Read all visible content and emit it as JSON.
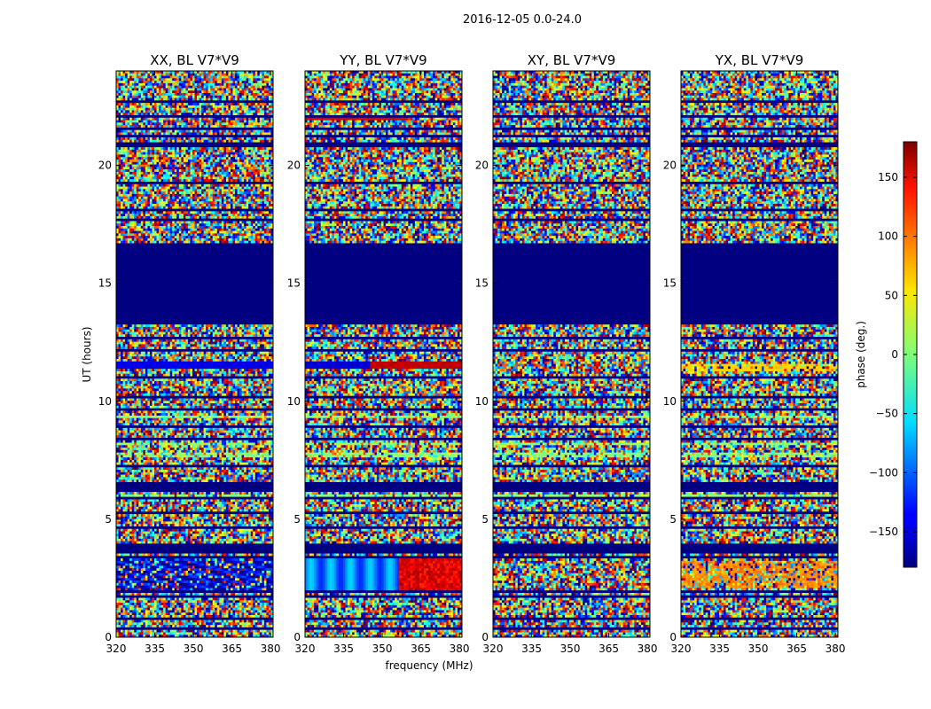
{
  "figure": {
    "suptitle": "2016-12-05 0.0-24.0",
    "xlabel": "frequency (MHz)",
    "ylabel": "UT (hours)"
  },
  "colorbar": {
    "label": "phase (deg.)",
    "range": [
      -180,
      180
    ],
    "ticks": [
      150,
      100,
      50,
      0,
      -50,
      -100,
      -150
    ],
    "tick_labels": [
      "150",
      "100",
      "50",
      "0",
      "−50",
      "−100",
      "−150"
    ],
    "colormap": "jet"
  },
  "chart_data": [
    {
      "type": "heatmap",
      "title": "XX, BL V7*V9",
      "xlim": [
        320,
        381
      ],
      "ylim": [
        0,
        24
      ],
      "xticks": [
        320,
        335,
        350,
        365,
        380
      ],
      "xtick_labels": [
        "320",
        "335",
        "350",
        "365",
        "380"
      ],
      "yticks": [
        0,
        5,
        10,
        15,
        20
      ],
      "ytick_labels": [
        "0",
        "5",
        "10",
        "15",
        "20"
      ],
      "z_range": [
        -180,
        180
      ],
      "cells": "phase noise across all frequencies; flagged/empty (-180) gaps at 13.3-16.7 h and narrow flagged rows throughout; coherent low-phase (~-150) fringes near 11.5 h and 2-3.3 h"
    },
    {
      "type": "heatmap",
      "title": "YY, BL V7*V9",
      "xlim": [
        320,
        381
      ],
      "ylim": [
        0,
        24
      ],
      "xticks": [
        320,
        335,
        350,
        365,
        380
      ],
      "xtick_labels": [
        "320",
        "335",
        "350",
        "365",
        "380"
      ],
      "yticks": [
        0,
        5,
        10,
        15,
        20
      ],
      "ytick_labels": [
        "0",
        "5",
        "10",
        "15",
        "20"
      ],
      "z_range": [
        -180,
        180
      ],
      "cells": "phase noise; flagged gap 13.3-16.7 h; coherent fringes near 2-3.3 h (cyan at low freq, red at high freq) and red band near 11.5 h and 22 h"
    },
    {
      "type": "heatmap",
      "title": "XY, BL V7*V9",
      "xlim": [
        320,
        381
      ],
      "ylim": [
        0,
        24
      ],
      "xticks": [
        320,
        335,
        350,
        365,
        380
      ],
      "xtick_labels": [
        "320",
        "335",
        "350",
        "365",
        "380"
      ],
      "yticks": [
        0,
        5,
        10,
        15,
        20
      ],
      "ytick_labels": [
        "0",
        "5",
        "10",
        "15",
        "20"
      ],
      "z_range": [
        -180,
        180
      ],
      "cells": "phase noise; flagged gap 13.3-16.7 h and narrow flagged rows"
    },
    {
      "type": "heatmap",
      "title": "YX, BL V7*V9",
      "xlim": [
        320,
        381
      ],
      "ylim": [
        0,
        24
      ],
      "xticks": [
        320,
        335,
        350,
        365,
        380
      ],
      "xtick_labels": [
        "320",
        "335",
        "350",
        "365",
        "380"
      ],
      "yticks": [
        0,
        5,
        10,
        15,
        20
      ],
      "ytick_labels": [
        "0",
        "5",
        "10",
        "15",
        "20"
      ],
      "z_range": [
        -180,
        180
      ],
      "cells": "phase noise; flagged gap 13.3-16.7 h; orange/yellow fringes near 2-3 h"
    }
  ]
}
